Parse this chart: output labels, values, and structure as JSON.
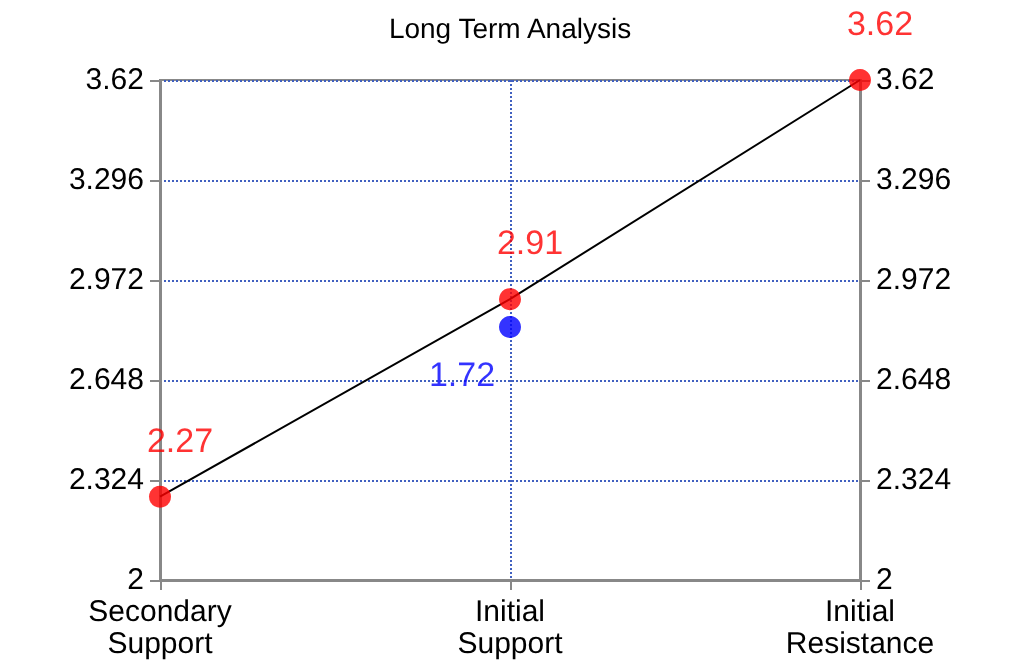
{
  "chart_data": {
    "type": "line",
    "title": "Long Term Analysis",
    "categories": [
      "Secondary\nSupport",
      "Initial\nSupport",
      "Initial\nResistance"
    ],
    "ylim": [
      2,
      3.62
    ],
    "yticks": [
      2,
      2.324,
      2.648,
      2.972,
      3.296,
      3.62
    ],
    "y2lim": [
      2,
      3.62
    ],
    "y2ticks": [
      2,
      2.324,
      2.648,
      2.972,
      3.296,
      3.62
    ],
    "grid": true,
    "annotations": [
      "1.72"
    ],
    "series": [
      {
        "color": "#000000",
        "marker": "none",
        "values": [
          2.27,
          2.91,
          3.62
        ]
      },
      {
        "type": "scatter",
        "color": "#ff0000",
        "marker": "circle",
        "values": [
          2.27,
          2.91,
          3.62
        ],
        "data_labels": true
      },
      {
        "type": "scatter",
        "color": "#0000ff",
        "marker": "circle",
        "values": [
          null,
          2.82,
          null
        ]
      }
    ]
  }
}
